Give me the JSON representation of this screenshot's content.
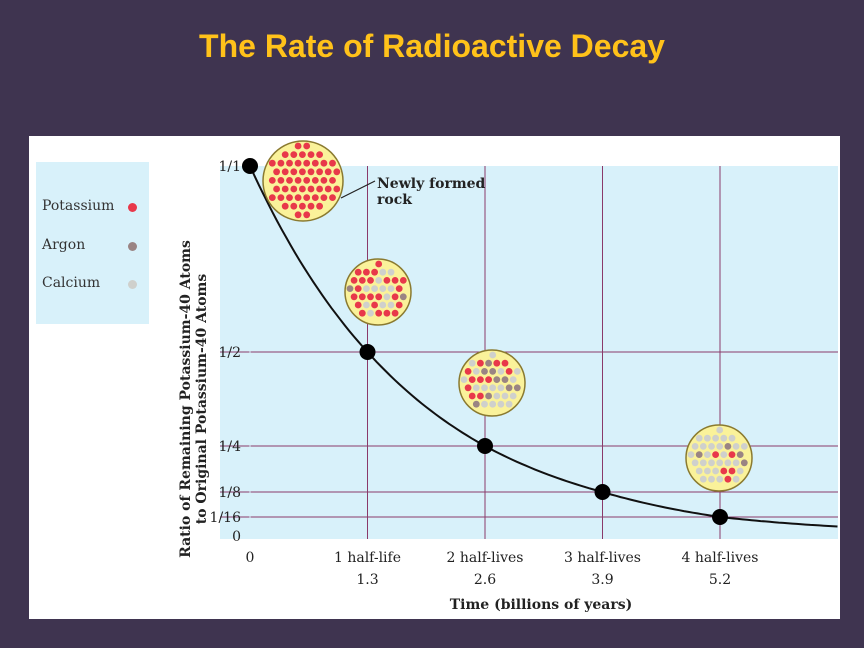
{
  "slide": {
    "title": "The Rate of Radioactive Decay"
  },
  "legend": {
    "items": [
      {
        "label": "Potassium",
        "color": "#e8384a"
      },
      {
        "label": "Argon",
        "color": "#9a8483"
      },
      {
        "label": "Calcium",
        "color": "#cfd0cc"
      }
    ]
  },
  "chart_data": {
    "type": "line",
    "title": "",
    "xlabel": "Time (billions of years)",
    "ylabel_line1": "Ratio of Remaining Potassium-40 Atoms",
    "ylabel_line2": "to Original Potassium-40 Atoms",
    "x_tick_labels": [
      {
        "x": 0,
        "line1": "0",
        "line2": ""
      },
      {
        "x": 1.3,
        "line1": "1 half-life",
        "line2": "1.3"
      },
      {
        "x": 2.6,
        "line1": "2 half-lives",
        "line2": "2.6"
      },
      {
        "x": 3.9,
        "line1": "3 half-lives",
        "line2": "3.9"
      },
      {
        "x": 5.2,
        "line1": "4 half-lives",
        "line2": "5.2"
      }
    ],
    "y_tick_labels": [
      {
        "y": 1,
        "label": "1/1"
      },
      {
        "y": 0.5,
        "label": "1/2"
      },
      {
        "y": 0.25,
        "label": "1/4"
      },
      {
        "y": 0.125,
        "label": "1/8"
      },
      {
        "y": 0.0625,
        "label": "1/16"
      },
      {
        "y": 0,
        "label": "0"
      }
    ],
    "xlim": [
      0,
      6.3
    ],
    "ylim": [
      0,
      1
    ],
    "grid": true,
    "legend_position": "left",
    "series": [
      {
        "points": [
          {
            "x": 0,
            "y": 1
          },
          {
            "x": 1.3,
            "y": 0.5
          },
          {
            "x": 2.6,
            "y": 0.25
          },
          {
            "x": 3.9,
            "y": 0.125
          },
          {
            "x": 5.2,
            "y": 0.0625
          }
        ]
      }
    ],
    "annotation": {
      "line1": "Newly formed",
      "line2": "rock"
    },
    "samples": [
      {
        "x": 0,
        "potassium_fraction": 1.0
      },
      {
        "x": 1.3,
        "potassium_fraction": 0.5
      },
      {
        "x": 2.6,
        "potassium_fraction": 0.25
      },
      {
        "x": 5.2,
        "potassium_fraction": 0.0625
      }
    ],
    "colors": {
      "plot_bg": "#d8f1fa",
      "grid": "#8a3a6a",
      "curve": "#111111",
      "rock": "#faf29a",
      "rock_border": "#8a7a30"
    }
  }
}
